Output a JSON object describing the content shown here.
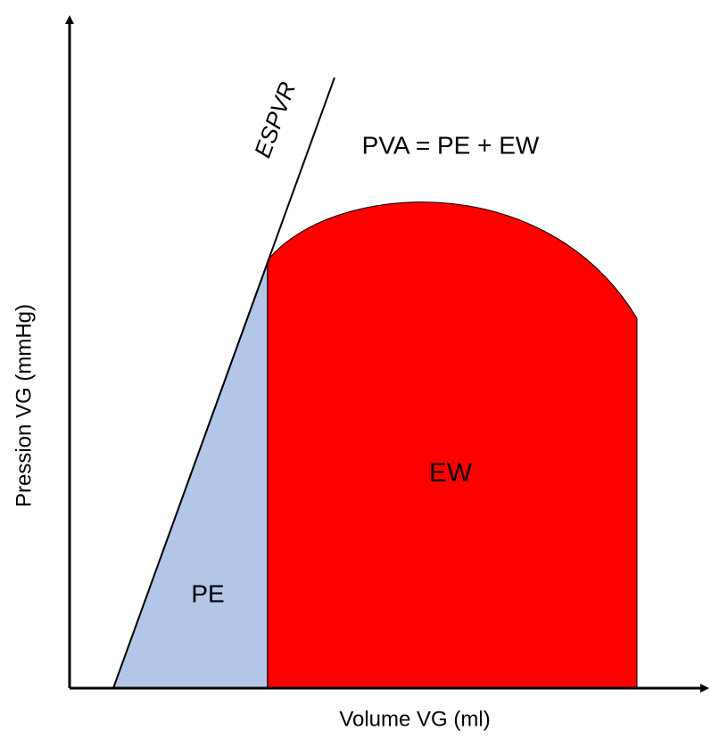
{
  "diagram": {
    "y_axis_label": "Pression VG (mmHg)",
    "x_axis_label": "Volume VG (ml)",
    "line_label": "ESPVR",
    "equation": "PVA = PE + EW",
    "regions": [
      "PE",
      "EW"
    ]
  }
}
